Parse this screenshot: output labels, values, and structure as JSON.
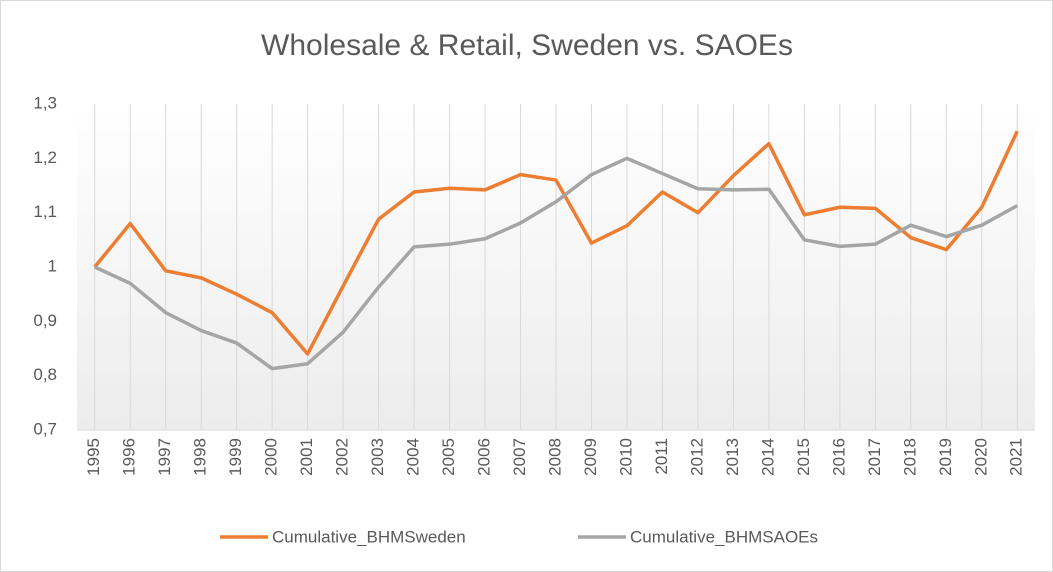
{
  "chart_data": {
    "type": "line",
    "title": "Wholesale & Retail, Sweden vs. SAOEs",
    "categories": [
      "1995",
      "1996",
      "1997",
      "1998",
      "1999",
      "2000",
      "2001",
      "2002",
      "2003",
      "2004",
      "2005",
      "2006",
      "2007",
      "2008",
      "2009",
      "2010",
      "2011",
      "2012",
      "2013",
      "2014",
      "2015",
      "2016",
      "2017",
      "2018",
      "2019",
      "2020",
      "2021"
    ],
    "series": [
      {
        "name": "Cumulative_BHMSweden",
        "color": "#ed7d31",
        "values": [
          1.0,
          1.08,
          0.993,
          0.98,
          0.95,
          0.916,
          0.84,
          0.965,
          1.088,
          1.138,
          1.145,
          1.142,
          1.17,
          1.16,
          1.044,
          1.076,
          1.138,
          1.1,
          1.168,
          1.227,
          1.096,
          1.11,
          1.108,
          1.054,
          1.032,
          1.11,
          1.25
        ]
      },
      {
        "name": "Cumulative_BHMSAOEs",
        "color": "#a5a5a5",
        "values": [
          1.0,
          0.97,
          0.916,
          0.883,
          0.86,
          0.813,
          0.822,
          0.88,
          0.963,
          1.037,
          1.042,
          1.052,
          1.081,
          1.12,
          1.17,
          1.2,
          1.172,
          1.144,
          1.142,
          1.143,
          1.05,
          1.038,
          1.042,
          1.077,
          1.056,
          1.077,
          1.113
        ]
      }
    ],
    "ylim": [
      0.7,
      1.3
    ],
    "yticks": [
      {
        "value": 0.7,
        "label": "0,7"
      },
      {
        "value": 0.8,
        "label": "0,8"
      },
      {
        "value": 0.9,
        "label": "0,9"
      },
      1,
      {
        "value": 1.1,
        "label": "1,1"
      },
      {
        "value": 1.2,
        "label": "1,2"
      },
      {
        "value": 1.3,
        "label": "1,3"
      }
    ],
    "x_grid": true,
    "legend": "bottom"
  }
}
